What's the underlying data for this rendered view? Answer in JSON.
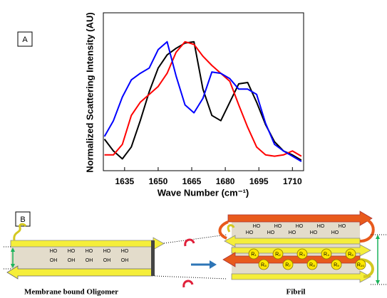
{
  "panels": {
    "a": "A",
    "b": "B"
  },
  "chart_data": {
    "type": "line",
    "xlabel": "Wave Number (cm⁻¹)",
    "ylabel": "Normalized Scattering Intensity (AU)",
    "x": [
      1626,
      1630,
      1634,
      1638,
      1642,
      1646,
      1650,
      1654,
      1658,
      1662,
      1666,
      1670,
      1674,
      1678,
      1682,
      1686,
      1690,
      1694,
      1698,
      1702,
      1706,
      1710,
      1714
    ],
    "xlim": [
      1625.5,
      1715
    ],
    "xticks": [
      1635,
      1650,
      1665,
      1680,
      1695,
      1710
    ],
    "ylim": [
      0,
      1.2
    ],
    "series": [
      {
        "color": "#000000",
        "values": [
          0.24,
          0.15,
          0.09,
          0.18,
          0.38,
          0.6,
          0.78,
          0.88,
          0.93,
          0.97,
          0.98,
          0.62,
          0.42,
          0.38,
          0.52,
          0.66,
          0.67,
          0.52,
          0.35,
          0.22,
          0.15,
          0.12,
          0.08
        ]
      },
      {
        "color": "#ff0000",
        "values": [
          0.12,
          0.12,
          0.2,
          0.42,
          0.52,
          0.58,
          0.64,
          0.74,
          0.9,
          0.98,
          0.96,
          0.87,
          0.8,
          0.74,
          0.68,
          0.5,
          0.33,
          0.18,
          0.12,
          0.11,
          0.12,
          0.15,
          0.11
        ]
      },
      {
        "color": "#0000ff",
        "values": [
          0.26,
          0.38,
          0.56,
          0.69,
          0.74,
          0.78,
          0.92,
          0.98,
          0.72,
          0.5,
          0.44,
          0.55,
          0.75,
          0.74,
          0.7,
          0.62,
          0.62,
          0.58,
          0.36,
          0.2,
          0.15,
          0.11,
          0.07
        ]
      }
    ]
  },
  "diagram": {
    "oligomer_label": "Membrane bound Oligomer",
    "fibril_label": "Fibril",
    "oligomer_ho": [
      "HO",
      "HO",
      "HO",
      "HO",
      "HO"
    ],
    "oligomer_oh": [
      "OH",
      "OH",
      "OH",
      "OH",
      "OH"
    ],
    "fibril_ho_top": [
      "HO",
      "HO",
      "HO",
      "HO",
      "HO"
    ],
    "fibril_ho_bottom": [
      "HO",
      "HO",
      "HO",
      "HO",
      "HO"
    ],
    "residues_top": [
      "R₁",
      "R₂",
      "R₃",
      "R₄",
      "R₅"
    ],
    "residues_bottom": [
      "R₆",
      "R₇",
      "R₈",
      "R₉",
      "R₁₀"
    ]
  }
}
